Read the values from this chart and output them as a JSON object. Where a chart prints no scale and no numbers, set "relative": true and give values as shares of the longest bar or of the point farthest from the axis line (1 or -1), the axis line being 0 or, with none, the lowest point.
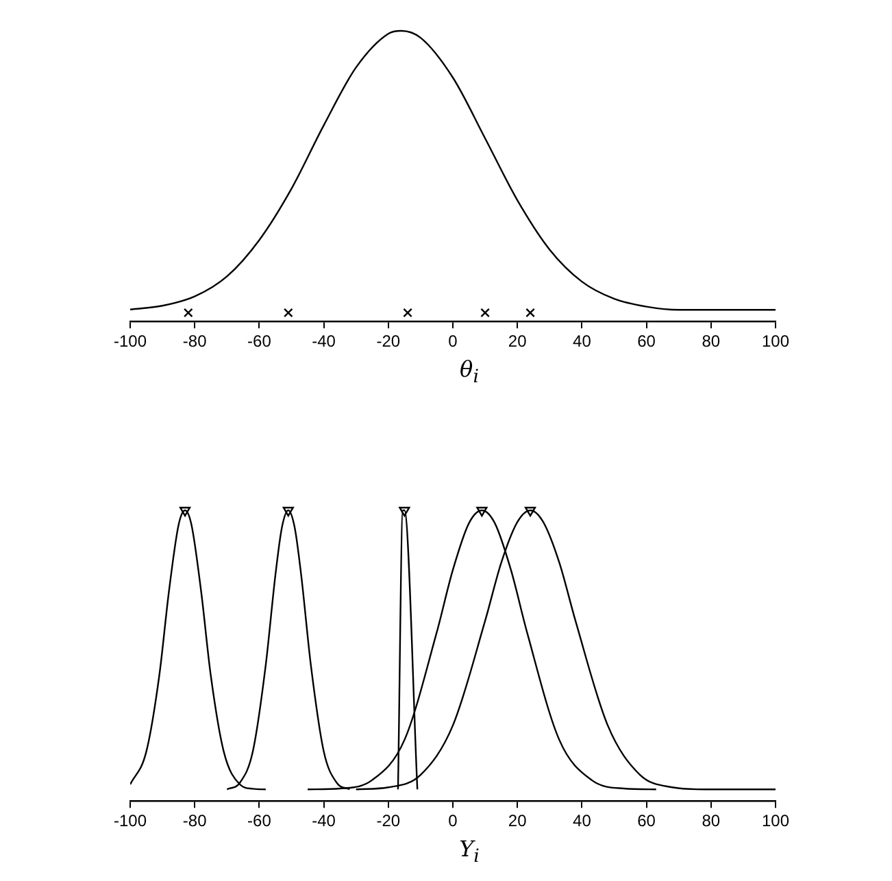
{
  "chart_data": [
    {
      "type": "line",
      "relative": true,
      "xlabel": "θ$_{i}$",
      "xlim": [
        -100,
        100
      ],
      "xticks": [
        -100,
        -80,
        -60,
        -40,
        -20,
        0,
        20,
        40,
        60,
        80,
        100
      ],
      "series": [
        {
          "type": "line",
          "color": "#000000",
          "marker": "none",
          "x": [
            -100,
            -90,
            -80,
            -70,
            -60,
            -50,
            -40,
            -30,
            -20,
            -16,
            -10,
            0,
            10,
            20,
            30,
            40,
            50,
            60,
            70,
            80,
            100
          ],
          "values": [
            0.041,
            0.054,
            0.086,
            0.155,
            0.28,
            0.457,
            0.675,
            0.874,
            0.99,
            1,
            0.976,
            0.839,
            0.63,
            0.417,
            0.247,
            0.137,
            0.078,
            0.051,
            0.04,
            0.04,
            0.04
          ]
        },
        {
          "type": "scatter",
          "color": "#000000",
          "marker": "cross",
          "x": [
            -82,
            -51,
            -14,
            10,
            24
          ],
          "values": [
            0.03,
            0.03,
            0.03,
            0.03,
            0.03
          ]
        }
      ]
    },
    {
      "type": "line",
      "relative": true,
      "xlabel": "Y$_{i}$",
      "xlim": [
        -100,
        100
      ],
      "xticks": [
        -100,
        -80,
        -60,
        -40,
        -20,
        0,
        20,
        40,
        60,
        80,
        100
      ],
      "series": [
        {
          "type": "line",
          "color": "#000000",
          "marker": "none",
          "x": [
            -100,
            -95,
            -91,
            -88,
            -85,
            -83,
            -81,
            -78,
            -75,
            -71,
            -66,
            -62,
            -58
          ],
          "values": [
            0.057,
            0.17,
            0.43,
            0.72,
            0.95,
            1,
            0.95,
            0.72,
            0.43,
            0.17,
            0.057,
            0.042,
            0.04
          ]
        },
        {
          "type": "line",
          "color": "#000000",
          "marker": "none",
          "x": [
            -70,
            -66,
            -62,
            -58,
            -55,
            -53,
            -51,
            -49,
            -47,
            -44,
            -40,
            -36,
            -32
          ],
          "values": [
            0.04,
            0.063,
            0.17,
            0.467,
            0.777,
            0.94,
            1,
            0.94,
            0.777,
            0.467,
            0.17,
            0.063,
            0.04
          ]
        },
        {
          "type": "line",
          "color": "#000000",
          "marker": "none",
          "x": [
            -17,
            -15.5,
            -15,
            -11
          ],
          "values": [
            0.04,
            1,
            1,
            0.04
          ]
        },
        {
          "type": "line",
          "color": "#000000",
          "marker": "none",
          "x": [
            -45,
            -35,
            -25,
            -15,
            -5,
            0,
            5,
            9,
            13,
            18,
            23,
            33,
            43,
            53,
            63
          ],
          "values": [
            0.04,
            0.043,
            0.072,
            0.21,
            0.58,
            0.795,
            0.956,
            1,
            0.956,
            0.795,
            0.58,
            0.21,
            0.072,
            0.043,
            0.04
          ]
        },
        {
          "type": "line",
          "color": "#000000",
          "marker": "none",
          "x": [
            -30,
            -20,
            -10,
            0,
            10,
            15,
            20,
            24,
            28,
            33,
            38,
            48,
            58,
            68,
            78,
            100
          ],
          "values": [
            0.04,
            0.047,
            0.09,
            0.26,
            0.62,
            0.82,
            0.96,
            1,
            0.96,
            0.82,
            0.62,
            0.26,
            0.09,
            0.047,
            0.04,
            0.04
          ]
        },
        {
          "type": "scatter",
          "color": "#000000",
          "marker": "triangle",
          "x": [
            -83,
            -51,
            -15,
            9,
            24
          ],
          "values": [
            1,
            1,
            1,
            1,
            1
          ]
        }
      ]
    }
  ]
}
